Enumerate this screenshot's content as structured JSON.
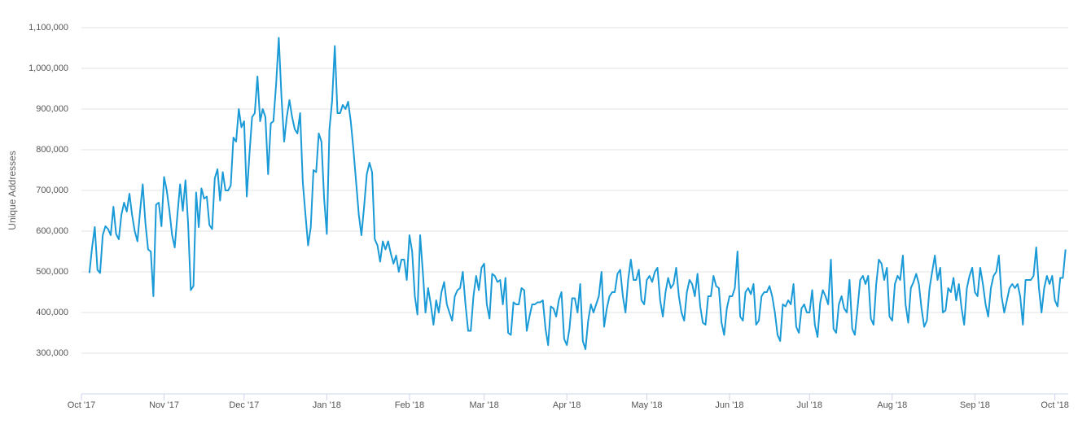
{
  "chart_data": {
    "type": "line",
    "y_label": "Unique Addresses",
    "xlim": [
      -3,
      367
    ],
    "xticks": [
      {
        "value": -3,
        "label": "Oct '17"
      },
      {
        "value": 28,
        "label": "Nov '17"
      },
      {
        "value": 58,
        "label": "Dec '17"
      },
      {
        "value": 89,
        "label": "Jan '18"
      },
      {
        "value": 120,
        "label": "Feb '18"
      },
      {
        "value": 148,
        "label": "Mar '18"
      },
      {
        "value": 179,
        "label": "Apr '18"
      },
      {
        "value": 209,
        "label": "May '18"
      },
      {
        "value": 240,
        "label": "Jun '18"
      },
      {
        "value": 270,
        "label": "Jul '18"
      },
      {
        "value": 301,
        "label": "Aug '18"
      },
      {
        "value": 332,
        "label": "Sep '18"
      },
      {
        "value": 362,
        "label": "Oct '18"
      }
    ],
    "ylim": [
      200000,
      1100000
    ],
    "yticks": [
      {
        "value": 300000,
        "label": "300,000"
      },
      {
        "value": 400000,
        "label": "400,000"
      },
      {
        "value": 500000,
        "label": "500,000"
      },
      {
        "value": 600000,
        "label": "600,000"
      },
      {
        "value": 700000,
        "label": "700,000"
      },
      {
        "value": 800000,
        "label": "800,000"
      },
      {
        "value": 900000,
        "label": "900,000"
      },
      {
        "value": 1000000,
        "label": "1,000,000"
      },
      {
        "value": 1100000,
        "label": "1,100,000"
      }
    ],
    "grid": true,
    "series": [
      {
        "color": "#1a9ad6",
        "values": [
          497000,
          560000,
          610000,
          505000,
          497000,
          590000,
          612000,
          605000,
          590000,
          660000,
          593000,
          580000,
          640000,
          670000,
          648000,
          692000,
          640000,
          600000,
          575000,
          650000,
          715000,
          620000,
          555000,
          550000,
          440000,
          665000,
          670000,
          612000,
          733000,
          700000,
          650000,
          590000,
          560000,
          640000,
          715000,
          650000,
          725000,
          620000,
          455000,
          465000,
          695000,
          610000,
          705000,
          680000,
          685000,
          615000,
          605000,
          730000,
          752000,
          675000,
          745000,
          700000,
          700000,
          712000,
          830000,
          820000,
          900000,
          855000,
          870000,
          685000,
          790000,
          880000,
          890000,
          980000,
          870000,
          900000,
          880000,
          740000,
          865000,
          870000,
          960000,
          1075000,
          930000,
          820000,
          880000,
          922000,
          880000,
          850000,
          840000,
          890000,
          720000,
          640000,
          565000,
          610000,
          750000,
          745000,
          840000,
          820000,
          680000,
          593000,
          850000,
          920000,
          1055000,
          890000,
          890000,
          910000,
          900000,
          918000,
          870000,
          800000,
          720000,
          640000,
          590000,
          660000,
          740000,
          768000,
          745000,
          580000,
          565000,
          525000,
          575000,
          555000,
          575000,
          545000,
          520000,
          540000,
          500000,
          530000,
          530000,
          480000,
          590000,
          550000,
          440000,
          395000,
          590000,
          500000,
          400000,
          460000,
          420000,
          370000,
          430000,
          400000,
          450000,
          475000,
          420000,
          400000,
          380000,
          440000,
          455000,
          460000,
          500000,
          420000,
          355000,
          355000,
          440000,
          490000,
          455000,
          510000,
          520000,
          420000,
          385000,
          495000,
          490000,
          475000,
          480000,
          420000,
          485000,
          350000,
          345000,
          425000,
          420000,
          420000,
          460000,
          455000,
          355000,
          390000,
          420000,
          420000,
          425000,
          425000,
          430000,
          360000,
          320000,
          415000,
          410000,
          390000,
          430000,
          450000,
          335000,
          320000,
          360000,
          435000,
          435000,
          400000,
          470000,
          330000,
          310000,
          380000,
          420000,
          400000,
          420000,
          440000,
          500000,
          365000,
          410000,
          440000,
          450000,
          450000,
          495000,
          505000,
          440000,
          400000,
          480000,
          530000,
          480000,
          480000,
          505000,
          430000,
          420000,
          480000,
          490000,
          475000,
          500000,
          510000,
          430000,
          390000,
          450000,
          485000,
          460000,
          470000,
          510000,
          440000,
          400000,
          380000,
          450000,
          480000,
          470000,
          440000,
          495000,
          415000,
          375000,
          370000,
          440000,
          440000,
          490000,
          465000,
          460000,
          375000,
          345000,
          410000,
          440000,
          440000,
          460000,
          550000,
          390000,
          380000,
          450000,
          460000,
          445000,
          470000,
          370000,
          380000,
          440000,
          450000,
          450000,
          465000,
          440000,
          400000,
          345000,
          330000,
          420000,
          415000,
          430000,
          420000,
          470000,
          365000,
          350000,
          410000,
          420000,
          400000,
          400000,
          455000,
          370000,
          340000,
          425000,
          455000,
          440000,
          420000,
          530000,
          360000,
          350000,
          420000,
          440000,
          410000,
          400000,
          480000,
          360000,
          345000,
          410000,
          480000,
          490000,
          470000,
          490000,
          385000,
          370000,
          470000,
          530000,
          520000,
          480000,
          510000,
          390000,
          380000,
          470000,
          490000,
          480000,
          540000,
          420000,
          375000,
          460000,
          475000,
          495000,
          470000,
          410000,
          365000,
          380000,
          460000,
          500000,
          540000,
          480000,
          510000,
          400000,
          405000,
          460000,
          450000,
          485000,
          430000,
          470000,
          410000,
          370000,
          460000,
          490000,
          510000,
          450000,
          440000,
          510000,
          470000,
          420000,
          390000,
          460000,
          490000,
          500000,
          540000,
          440000,
          400000,
          430000,
          460000,
          470000,
          460000,
          470000,
          440000,
          370000,
          480000,
          480000,
          480000,
          490000,
          560000,
          460000,
          400000,
          460000,
          490000,
          470000,
          490000,
          430000,
          415000,
          485000,
          485000,
          555000
        ]
      }
    ]
  }
}
